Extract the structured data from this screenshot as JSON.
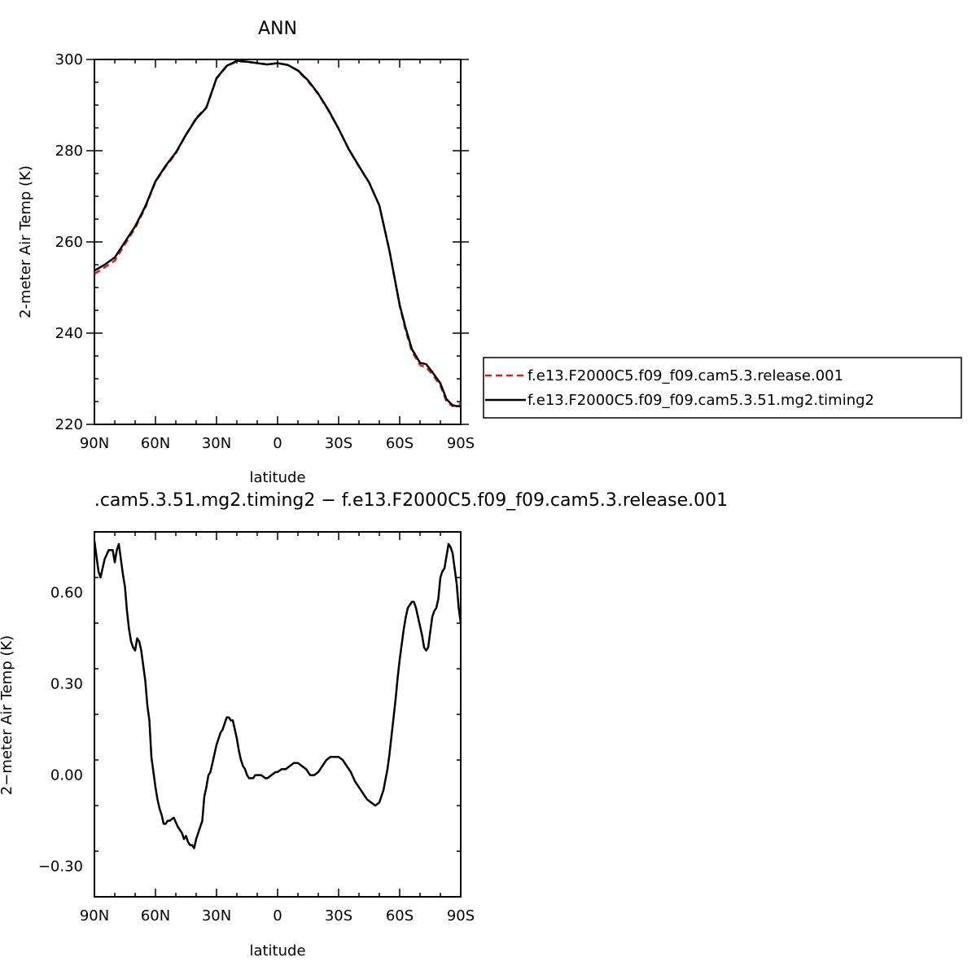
{
  "chart_data": [
    {
      "type": "line",
      "title": "ANN",
      "xlabel": "latitude",
      "ylabel": "2-meter Air Temp (K)",
      "xlim": [
        90,
        -90
      ],
      "ylim": [
        220,
        300
      ],
      "xticks": [
        90,
        60,
        30,
        0,
        -30,
        -60,
        -90
      ],
      "xtick_labels": [
        "90N",
        "60N",
        "30N",
        "0",
        "30S",
        "60S",
        "90S"
      ],
      "yticks": [
        220,
        240,
        260,
        280,
        300
      ],
      "ytick_labels": [
        "220",
        "240",
        "260",
        "280",
        "300"
      ],
      "grid": false,
      "legend_position": "right",
      "series": [
        {
          "name": "f.e13.F2000C5.f09_f09.cam5.3.release.001",
          "color": "#e41a1c",
          "dash": "dashed",
          "x": [
            90,
            85,
            80,
            75,
            70,
            65,
            60,
            55,
            50,
            45,
            40,
            35,
            30,
            25,
            20,
            15,
            10,
            5,
            0,
            -5,
            -10,
            -15,
            -20,
            -25,
            -30,
            -35,
            -40,
            -45,
            -50,
            -55,
            -60,
            -63,
            -66,
            -70,
            -73,
            -76,
            -80,
            -83,
            -86,
            -88,
            -90
          ],
          "y": [
            253.0,
            254.4,
            255.9,
            259.5,
            263.0,
            267.5,
            273.2,
            276.5,
            279.4,
            283.5,
            287.2,
            289.5,
            295.8,
            298.5,
            299.6,
            299.5,
            299.2,
            298.9,
            299.2,
            298.8,
            297.5,
            295.2,
            292.4,
            288.8,
            284.8,
            280.3,
            276.5,
            273.0,
            268.0,
            258.0,
            246.0,
            240.5,
            236.0,
            233.0,
            232.5,
            231.0,
            228.5,
            225.0,
            224.0,
            224.3,
            224.6
          ]
        },
        {
          "name": "f.e13.F2000C5.f09_f09.cam5.3.51.mg2.timing2",
          "color": "#000000",
          "dash": "solid",
          "x": [
            90,
            85,
            80,
            75,
            70,
            65,
            60,
            55,
            50,
            45,
            40,
            35,
            30,
            25,
            20,
            15,
            10,
            5,
            0,
            -5,
            -10,
            -15,
            -20,
            -25,
            -30,
            -35,
            -40,
            -45,
            -50,
            -55,
            -60,
            -63,
            -66,
            -70,
            -73,
            -76,
            -80,
            -83,
            -86,
            -88,
            -90
          ],
          "y": [
            253.7,
            255.0,
            256.6,
            260.0,
            263.4,
            267.8,
            273.3,
            276.7,
            279.6,
            283.5,
            287.0,
            289.4,
            295.9,
            298.6,
            299.7,
            299.5,
            299.2,
            298.9,
            299.2,
            298.8,
            297.6,
            295.4,
            292.5,
            288.9,
            284.8,
            280.3,
            276.6,
            273.0,
            268.0,
            258.0,
            246.2,
            241.0,
            236.5,
            233.5,
            233.2,
            231.5,
            229.0,
            225.5,
            224.2,
            224.0,
            224.0
          ]
        }
      ]
    },
    {
      "type": "line",
      "title": ".cam5.3.51.mg2.timing2  −  f.e13.F2000C5.f09_f09.cam5.3.release.001",
      "xlabel": "latitude",
      "ylabel": "2−meter Air Temp (K)",
      "xlim": [
        90,
        -90
      ],
      "ylim": [
        -0.4,
        0.8
      ],
      "xticks": [
        90,
        60,
        30,
        0,
        -30,
        -60,
        -90
      ],
      "xtick_labels": [
        "90N",
        "60N",
        "30N",
        "0",
        "30S",
        "60S",
        "90S"
      ],
      "yticks": [
        -0.3,
        0.0,
        0.3,
        0.6
      ],
      "ytick_labels": [
        "−0.30",
        "0.00",
        "0.30",
        "0.60"
      ],
      "grid": false,
      "series": [
        {
          "color": "#000000",
          "dash": "solid",
          "x": [
            90,
            88,
            87,
            85,
            83,
            81,
            80,
            79,
            78,
            76,
            75,
            74,
            73,
            72,
            71,
            70,
            69,
            68,
            67,
            65,
            64,
            63,
            62,
            60,
            59,
            58,
            57,
            56,
            55,
            54,
            53,
            51,
            49,
            48,
            47,
            46,
            45,
            44,
            43,
            42,
            41,
            40,
            39,
            38,
            37,
            36,
            35,
            34,
            33,
            32,
            31,
            30,
            29,
            28,
            27,
            26,
            25,
            24,
            23,
            22,
            21,
            20,
            19,
            18,
            17,
            16,
            15,
            14,
            13,
            12,
            11,
            10,
            8,
            6,
            5,
            3,
            1,
            0,
            -2,
            -4,
            -6,
            -8,
            -10,
            -12,
            -14,
            -16,
            -18,
            -20,
            -22,
            -24,
            -26,
            -28,
            -30,
            -32,
            -34,
            -36,
            -38,
            -40,
            -42,
            -44,
            -46,
            -48,
            -50,
            -52,
            -54,
            -55,
            -56,
            -57,
            -58,
            -59,
            -60,
            -61,
            -62,
            -63,
            -64,
            -65,
            -66,
            -67,
            -68,
            -69,
            -70,
            -71,
            -72,
            -73,
            -74,
            -75,
            -76,
            -77,
            -78,
            -79,
            -80,
            -81,
            -82,
            -83,
            -84,
            -85,
            -86,
            -87,
            -88,
            -89,
            -90
          ],
          "y": [
            0.77,
            0.67,
            0.65,
            0.71,
            0.74,
            0.74,
            0.7,
            0.74,
            0.76,
            0.66,
            0.62,
            0.54,
            0.48,
            0.44,
            0.42,
            0.41,
            0.45,
            0.44,
            0.41,
            0.31,
            0.23,
            0.18,
            0.06,
            -0.04,
            -0.08,
            -0.11,
            -0.13,
            -0.16,
            -0.16,
            -0.15,
            -0.15,
            -0.14,
            -0.17,
            -0.18,
            -0.19,
            -0.21,
            -0.2,
            -0.22,
            -0.23,
            -0.23,
            -0.24,
            -0.21,
            -0.19,
            -0.17,
            -0.15,
            -0.07,
            -0.04,
            0.0,
            0.01,
            0.04,
            0.07,
            0.1,
            0.12,
            0.14,
            0.15,
            0.17,
            0.19,
            0.19,
            0.18,
            0.18,
            0.15,
            0.12,
            0.08,
            0.05,
            0.03,
            0.02,
            0.0,
            -0.01,
            -0.01,
            -0.01,
            0.0,
            0.0,
            0.0,
            -0.01,
            -0.01,
            0.0,
            0.01,
            0.01,
            0.02,
            0.02,
            0.03,
            0.04,
            0.04,
            0.03,
            0.02,
            0.0,
            0.0,
            0.01,
            0.03,
            0.05,
            0.06,
            0.06,
            0.06,
            0.05,
            0.03,
            0.01,
            -0.02,
            -0.04,
            -0.06,
            -0.08,
            -0.09,
            -0.1,
            -0.09,
            -0.05,
            0.02,
            0.07,
            0.13,
            0.19,
            0.25,
            0.32,
            0.38,
            0.43,
            0.48,
            0.52,
            0.55,
            0.56,
            0.57,
            0.57,
            0.55,
            0.52,
            0.49,
            0.46,
            0.42,
            0.41,
            0.42,
            0.47,
            0.52,
            0.54,
            0.55,
            0.58,
            0.65,
            0.67,
            0.68,
            0.72,
            0.76,
            0.75,
            0.73,
            0.68,
            0.63,
            0.55,
            0.5
          ]
        }
      ]
    }
  ]
}
